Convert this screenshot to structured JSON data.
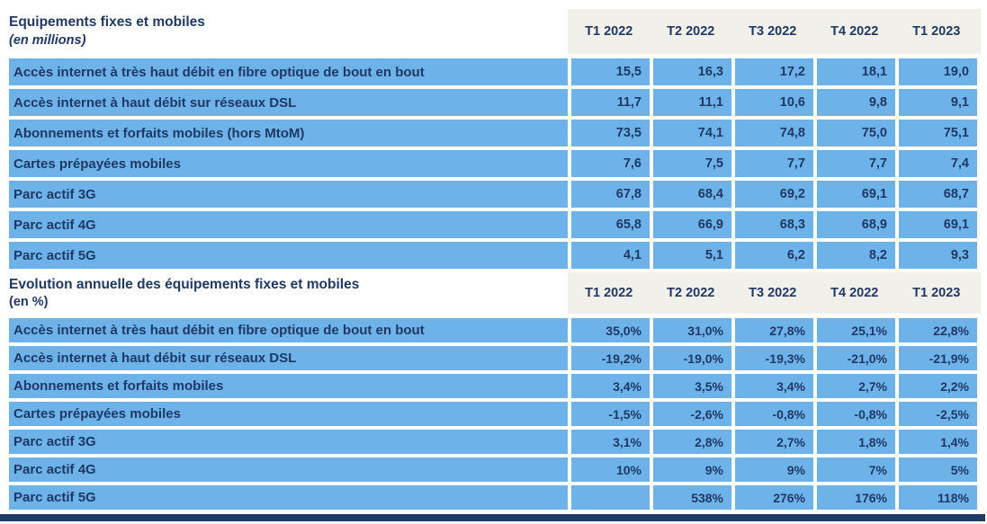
{
  "colors": {
    "cell_blue": "#6db3ea",
    "header_beige": "#f2f0ea",
    "text_navy": "#1f3864",
    "footer_navy": "#1f3c66",
    "background": "#ffffff"
  },
  "tables": [
    {
      "title": "Equipements fixes et mobiles",
      "subtitle": "(en millions)",
      "columns": [
        "T1 2022",
        "T2 2022",
        "T3 2022",
        "T4 2022",
        "T1 2023"
      ],
      "rows": [
        {
          "label": "Accès internet à très haut débit en fibre optique de bout en bout",
          "values": [
            "15,5",
            "16,3",
            "17,2",
            "18,1",
            "19,0"
          ]
        },
        {
          "label": "Accès internet à haut débit sur réseaux DSL",
          "values": [
            "11,7",
            "11,1",
            "10,6",
            "9,8",
            "9,1"
          ]
        },
        {
          "label": "Abonnements et forfaits mobiles (hors MtoM)",
          "values": [
            "73,5",
            "74,1",
            "74,8",
            "75,0",
            "75,1"
          ]
        },
        {
          "label": "Cartes prépayées mobiles",
          "values": [
            "7,6",
            "7,5",
            "7,7",
            "7,7",
            "7,4"
          ]
        },
        {
          "label": "Parc actif 3G",
          "values": [
            "67,8",
            "68,4",
            "69,2",
            "69,1",
            "68,7"
          ]
        },
        {
          "label": "Parc actif 4G",
          "values": [
            "65,8",
            "66,9",
            "68,3",
            "68,9",
            "69,1"
          ]
        },
        {
          "label": "Parc actif 5G",
          "values": [
            "4,1",
            "5,1",
            "6,2",
            "8,2",
            "9,3"
          ]
        }
      ]
    },
    {
      "title": "Evolution annuelle des équipements fixes et mobiles",
      "subtitle": "(en %)",
      "columns": [
        "T1 2022",
        "T2 2022",
        "T3 2022",
        "T4 2022",
        "T1 2023"
      ],
      "rows": [
        {
          "label": "Accès internet à très haut débit en fibre optique de bout en bout",
          "values": [
            "35,0%",
            "31,0%",
            "27,8%",
            "25,1%",
            "22,8%"
          ]
        },
        {
          "label": "Accès internet à haut débit sur réseaux DSL",
          "values": [
            "-19,2%",
            "-19,0%",
            "-19,3%",
            "-21,0%",
            "-21,9%"
          ]
        },
        {
          "label": "Abonnements et forfaits mobiles",
          "values": [
            "3,4%",
            "3,5%",
            "3,4%",
            "2,7%",
            "2,2%"
          ]
        },
        {
          "label": "Cartes prépayées mobiles",
          "values": [
            "-1,5%",
            "-2,6%",
            "-0,8%",
            "-0,8%",
            "-2,5%"
          ]
        },
        {
          "label": "Parc actif 3G",
          "values": [
            "3,1%",
            "2,8%",
            "2,7%",
            "1,8%",
            "1,4%"
          ]
        },
        {
          "label": "Parc actif 4G",
          "values": [
            "10%",
            "9%",
            "9%",
            "7%",
            "5%"
          ]
        },
        {
          "label": "Parc actif 5G",
          "values": [
            "",
            "538%",
            "276%",
            "176%",
            "118%"
          ]
        }
      ]
    }
  ],
  "chart_data": [
    {
      "type": "table",
      "title": "Equipements fixes et mobiles (en millions)",
      "columns": [
        "T1 2022",
        "T2 2022",
        "T3 2022",
        "T4 2022",
        "T1 2023"
      ],
      "unit": "millions",
      "series": [
        {
          "name": "Accès internet à très haut débit en fibre optique de bout en bout",
          "values": [
            15.5,
            16.3,
            17.2,
            18.1,
            19.0
          ]
        },
        {
          "name": "Accès internet à haut débit sur réseaux DSL",
          "values": [
            11.7,
            11.1,
            10.6,
            9.8,
            9.1
          ]
        },
        {
          "name": "Abonnements et forfaits mobiles (hors MtoM)",
          "values": [
            73.5,
            74.1,
            74.8,
            75.0,
            75.1
          ]
        },
        {
          "name": "Cartes prépayées mobiles",
          "values": [
            7.6,
            7.5,
            7.7,
            7.7,
            7.4
          ]
        },
        {
          "name": "Parc actif 3G",
          "values": [
            67.8,
            68.4,
            69.2,
            69.1,
            68.7
          ]
        },
        {
          "name": "Parc actif 4G",
          "values": [
            65.8,
            66.9,
            68.3,
            68.9,
            69.1
          ]
        },
        {
          "name": "Parc actif 5G",
          "values": [
            4.1,
            5.1,
            6.2,
            8.2,
            9.3
          ]
        }
      ]
    },
    {
      "type": "table",
      "title": "Evolution annuelle des équipements fixes et mobiles (en %)",
      "columns": [
        "T1 2022",
        "T2 2022",
        "T3 2022",
        "T4 2022",
        "T1 2023"
      ],
      "unit": "%",
      "series": [
        {
          "name": "Accès internet à très haut débit en fibre optique de bout en bout",
          "values": [
            35.0,
            31.0,
            27.8,
            25.1,
            22.8
          ]
        },
        {
          "name": "Accès internet à haut débit sur réseaux DSL",
          "values": [
            -19.2,
            -19.0,
            -19.3,
            -21.0,
            -21.9
          ]
        },
        {
          "name": "Abonnements et forfaits mobiles",
          "values": [
            3.4,
            3.5,
            3.4,
            2.7,
            2.2
          ]
        },
        {
          "name": "Cartes prépayées mobiles",
          "values": [
            -1.5,
            -2.6,
            -0.8,
            -0.8,
            -2.5
          ]
        },
        {
          "name": "Parc actif 3G",
          "values": [
            3.1,
            2.8,
            2.7,
            1.8,
            1.4
          ]
        },
        {
          "name": "Parc actif 4G",
          "values": [
            10,
            9,
            9,
            7,
            5
          ]
        },
        {
          "name": "Parc actif 5G",
          "values": [
            null,
            538,
            276,
            176,
            118
          ]
        }
      ]
    }
  ]
}
